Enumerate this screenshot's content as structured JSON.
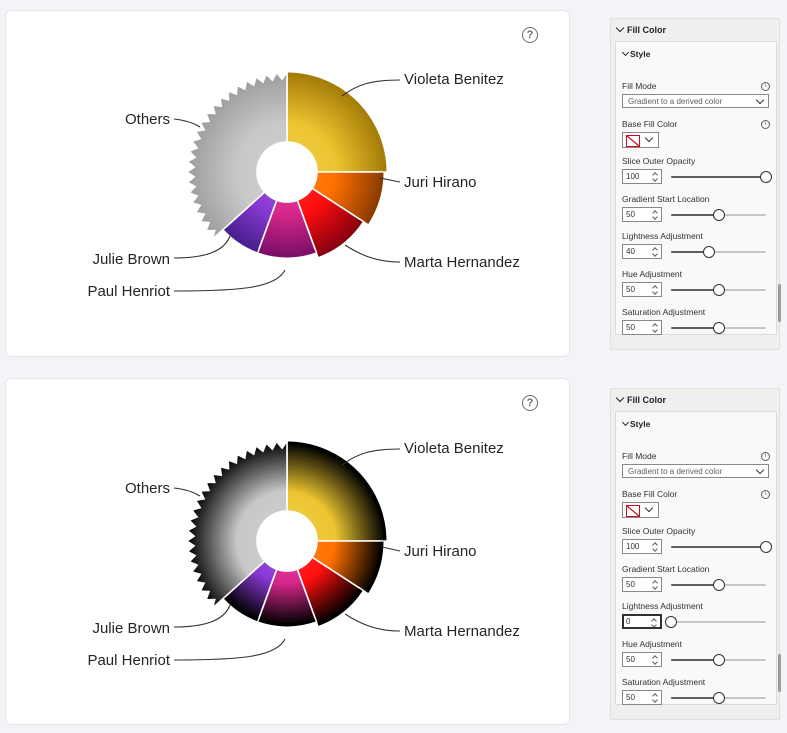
{
  "panels": [
    {
      "section_title": "Fill Color",
      "group_title": "Style",
      "fill_mode_label": "Fill Mode",
      "fill_mode_value": "Gradient to a derived color",
      "base_fill_label": "Base Fill Color",
      "info_glyph": "i",
      "help_glyph": "?",
      "fields": [
        {
          "label": "Slice Outer Opacity",
          "value": "100",
          "percent": 100
        },
        {
          "label": "Gradient Start Location",
          "value": "50",
          "percent": 50
        },
        {
          "label": "Lightness Adjustment",
          "value": "40",
          "percent": 40
        },
        {
          "label": "Hue Adjustment",
          "value": "50",
          "percent": 50
        },
        {
          "label": "Saturation Adjustment",
          "value": "50",
          "percent": 50
        }
      ]
    },
    {
      "section_title": "Fill Color",
      "group_title": "Style",
      "fill_mode_label": "Fill Mode",
      "fill_mode_value": "Gradient to a derived color",
      "base_fill_label": "Base Fill Color",
      "info_glyph": "i",
      "help_glyph": "?",
      "fields": [
        {
          "label": "Slice Outer Opacity",
          "value": "100",
          "percent": 100
        },
        {
          "label": "Gradient Start Location",
          "value": "50",
          "percent": 50
        },
        {
          "label": "Lightness Adjustment",
          "value": "0",
          "percent": 0
        },
        {
          "label": "Hue Adjustment",
          "value": "50",
          "percent": 50
        },
        {
          "label": "Saturation Adjustment",
          "value": "50",
          "percent": 50
        }
      ]
    }
  ],
  "charts": [
    {
      "type": "donut",
      "derived_color": "#8a6a00",
      "slices": [
        {
          "name": "Violeta Benitez",
          "color": "#ecc530",
          "edge": "#a67d08",
          "degrees": 90
        },
        {
          "name": "Juri Hirano",
          "color": "#ff7000",
          "edge": "#8d3c00",
          "degrees": 33
        },
        {
          "name": "Marta Hernandez",
          "color": "#ff0e0e",
          "edge": "#8b0010",
          "degrees": 37
        },
        {
          "name": "Paul Henriot",
          "color": "#d6278b",
          "edge": "#7c0f67",
          "degrees": 40
        },
        {
          "name": "Julie Brown",
          "color": "#8a3ad6",
          "edge": "#4a1f8e",
          "degrees": 28
        },
        {
          "name": "Others",
          "color": "#c8c8c8",
          "edge": "#9c9c9c",
          "degrees": 132
        }
      ]
    },
    {
      "type": "donut",
      "derived_color": "#000000",
      "slices": [
        {
          "name": "Violeta Benitez",
          "color": "#ecc530",
          "edge": "#000000",
          "degrees": 90
        },
        {
          "name": "Juri Hirano",
          "color": "#ff7000",
          "edge": "#000000",
          "degrees": 33
        },
        {
          "name": "Marta Hernandez",
          "color": "#ff0e0e",
          "edge": "#000000",
          "degrees": 37
        },
        {
          "name": "Paul Henriot",
          "color": "#d6278b",
          "edge": "#000000",
          "degrees": 40
        },
        {
          "name": "Julie Brown",
          "color": "#8a3ad6",
          "edge": "#000000",
          "degrees": 28
        },
        {
          "name": "Others",
          "color": "#c8c8c8",
          "edge": "#000000",
          "degrees": 132
        }
      ]
    }
  ]
}
